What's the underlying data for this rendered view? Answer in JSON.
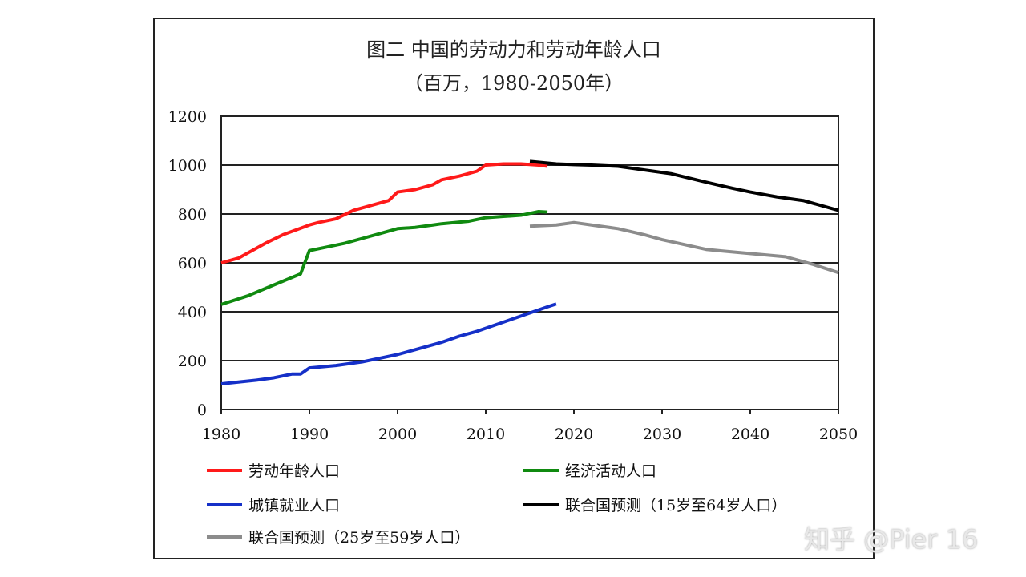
{
  "chart_data": {
    "type": "line",
    "title": "图二 中国的劳动力和劳动年龄人口",
    "subtitle": "（百万，1980-2050年）",
    "xlim": [
      1980,
      2050
    ],
    "ylim": [
      0,
      1200
    ],
    "xticks": [
      1980,
      1990,
      2000,
      2010,
      2020,
      2030,
      2040,
      2050
    ],
    "yticks": [
      0,
      200,
      400,
      600,
      800,
      1000,
      1200
    ],
    "grid": "horizontal",
    "legend_position": "bottom",
    "series": [
      {
        "name": "劳动年龄人口",
        "color": "#ff1a1a",
        "x": [
          1980,
          1982,
          1985,
          1987,
          1990,
          1991,
          1993,
          1995,
          1997,
          1999,
          2000,
          2002,
          2004,
          2005,
          2007,
          2009,
          2010,
          2012,
          2014,
          2016,
          2017
        ],
        "y": [
          600,
          620,
          680,
          715,
          755,
          765,
          780,
          815,
          835,
          855,
          890,
          900,
          920,
          940,
          955,
          975,
          1000,
          1005,
          1005,
          1000,
          995
        ]
      },
      {
        "name": "经济活动人口",
        "color": "#108a10",
        "x": [
          1980,
          1983,
          1985,
          1987,
          1989,
          1990,
          1992,
          1994,
          1996,
          1998,
          2000,
          2002,
          2004,
          2005,
          2008,
          2010,
          2012,
          2014,
          2016,
          2017
        ],
        "y": [
          430,
          465,
          495,
          525,
          555,
          650,
          665,
          680,
          700,
          720,
          740,
          745,
          755,
          760,
          770,
          785,
          790,
          795,
          810,
          808
        ]
      },
      {
        "name": "城镇就业人口",
        "color": "#1530c8",
        "x": [
          1980,
          1984,
          1986,
          1988,
          1989,
          1990,
          1993,
          1996,
          1998,
          2000,
          2002,
          2004,
          2005,
          2007,
          2009,
          2011,
          2013,
          2015,
          2017,
          2018
        ],
        "y": [
          105,
          120,
          130,
          145,
          145,
          170,
          180,
          195,
          210,
          225,
          245,
          265,
          275,
          300,
          320,
          345,
          370,
          395,
          420,
          432
        ]
      },
      {
        "name": "联合国预测（15岁至64岁人口）",
        "color": "#000000",
        "x": [
          2015,
          2018,
          2020,
          2022,
          2025,
          2027,
          2029,
          2031,
          2035,
          2038,
          2040,
          2043,
          2046,
          2050
        ],
        "y": [
          1015,
          1005,
          1002,
          1000,
          995,
          985,
          975,
          965,
          930,
          905,
          890,
          870,
          855,
          815
        ]
      },
      {
        "name": "联合国预测（25岁至59岁人口）",
        "color": "#8c8c8c",
        "x": [
          2015,
          2018,
          2020,
          2022,
          2025,
          2028,
          2030,
          2035,
          2037,
          2040,
          2044,
          2045,
          2047,
          2050
        ],
        "y": [
          750,
          755,
          765,
          755,
          740,
          715,
          695,
          655,
          648,
          638,
          625,
          615,
          595,
          560
        ]
      }
    ]
  },
  "watermark": "知乎 @Pier 16"
}
